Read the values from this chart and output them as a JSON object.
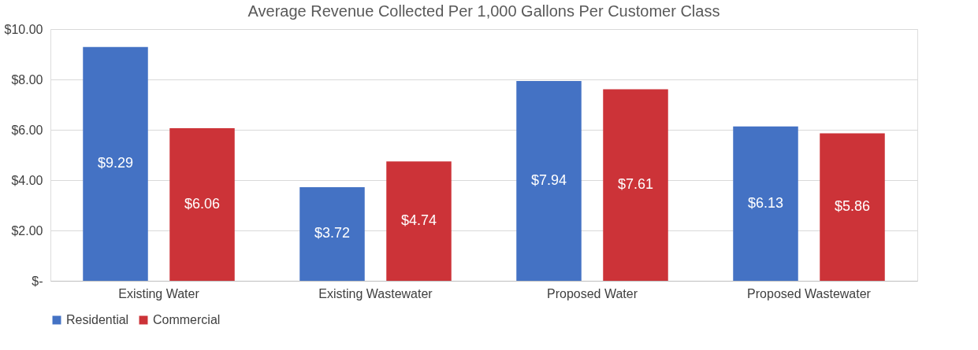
{
  "chart_data": {
    "type": "bar",
    "title": "Average Revenue Collected Per 1,000 Gallons Per Customer Class",
    "categories": [
      "Existing Water",
      "Existing Wastewater",
      "Proposed Water",
      "Proposed Wastewater"
    ],
    "series": [
      {
        "name": "Residential",
        "color": "#4472c4",
        "values": [
          9.29,
          3.72,
          7.94,
          6.13
        ],
        "value_labels": [
          "$9.29",
          "$3.72",
          "$7.94",
          "$6.13"
        ]
      },
      {
        "name": "Commercial",
        "color": "#cc3338",
        "values": [
          6.06,
          4.74,
          7.61,
          5.86
        ],
        "value_labels": [
          "$6.06",
          "$4.74",
          "$7.61",
          "$5.86"
        ]
      }
    ],
    "ylim": [
      0,
      10
    ],
    "yticks": [
      {
        "value": 0,
        "label": "$-"
      },
      {
        "value": 2,
        "label": "$2.00"
      },
      {
        "value": 4,
        "label": "$4.00"
      },
      {
        "value": 6,
        "label": "$6.00"
      },
      {
        "value": 8,
        "label": "$8.00"
      },
      {
        "value": 10,
        "label": "$10.00"
      }
    ],
    "grid": "y",
    "legend": "bottom"
  }
}
